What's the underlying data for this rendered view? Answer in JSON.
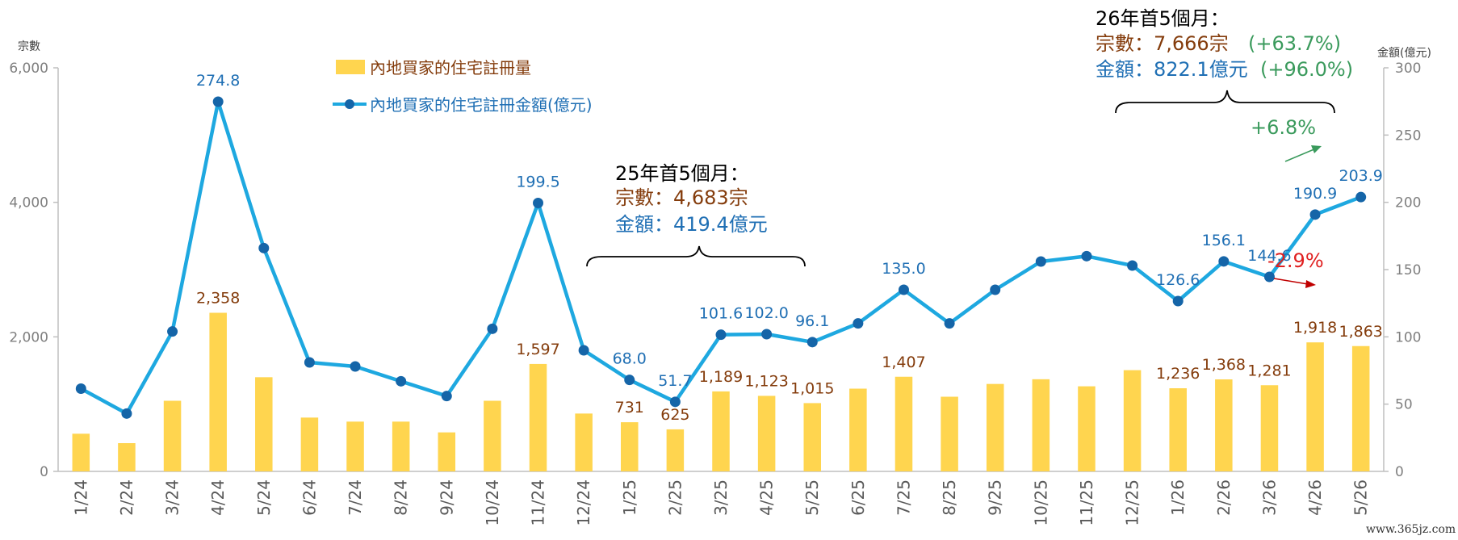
{
  "chart_data": {
    "type": "bar+line",
    "categories": [
      "1/24",
      "2/24",
      "3/24",
      "4/24",
      "5/24",
      "6/24",
      "7/24",
      "8/24",
      "9/24",
      "10/24",
      "11/24",
      "12/24",
      "1/25",
      "2/25",
      "3/25",
      "4/25",
      "5/25",
      "6/25",
      "7/25",
      "8/25",
      "9/25",
      "10/25",
      "11/25",
      "12/25",
      "1/26",
      "2/26",
      "3/26",
      "4/26",
      "5/26"
    ],
    "series": [
      {
        "name": "內地買家的住宅註冊量",
        "axis": "left",
        "type": "bar",
        "color": "#ffd54f",
        "values": [
          560,
          420,
          1050,
          2358,
          1400,
          800,
          740,
          740,
          580,
          1050,
          1597,
          860,
          731,
          625,
          1189,
          1123,
          1015,
          1230,
          1407,
          1110,
          1300,
          1370,
          1265,
          1505,
          1236,
          1368,
          1281,
          1918,
          1863
        ],
        "labels": [
          "",
          "",
          "",
          "2,358",
          "",
          "",
          "",
          "",
          "",
          "",
          "1,597",
          "",
          "731",
          "625",
          "1,189",
          "1,123",
          "1,015",
          "",
          "1,407",
          "",
          "",
          "",
          "",
          "",
          "1,236",
          "1,368",
          "1,281",
          "1,918",
          "1,863"
        ]
      },
      {
        "name": "內地買家的住宅註冊金額(億元)",
        "axis": "right",
        "type": "line",
        "color": "#1ea8e0",
        "marker_color": "#1565a8",
        "values": [
          61.5,
          43,
          104,
          274.8,
          166,
          81,
          78,
          67,
          56,
          106,
          199.5,
          90,
          68.0,
          51.7,
          101.6,
          102.0,
          96.1,
          110,
          135.0,
          110,
          135,
          156,
          160,
          153,
          126.6,
          156.1,
          144.6,
          190.9,
          203.9
        ],
        "labels": [
          "",
          "",
          "",
          "274.8",
          "",
          "",
          "",
          "",
          "",
          "",
          "199.5",
          "",
          "68.0",
          "51.7",
          "101.6",
          "102.0",
          "96.1",
          "",
          "135.0",
          "",
          "",
          "",
          "",
          "",
          "126.6",
          "156.1",
          "144.6",
          "190.9",
          "203.9"
        ]
      }
    ],
    "left_axis": {
      "title": "宗數",
      "ticks": [
        "0",
        "2,000",
        "4,000",
        "6,000"
      ],
      "range": [
        0,
        6000
      ]
    },
    "right_axis": {
      "title": "金額(億元)",
      "ticks": [
        "0",
        "50",
        "100",
        "150",
        "200",
        "250",
        "300"
      ],
      "range": [
        0,
        300
      ]
    },
    "legend_position": "top-left",
    "annotations": {
      "period25": {
        "title": "25年首5個月：",
        "count": "宗數：4,683宗",
        "amount": "金額：419.4億元"
      },
      "period26": {
        "title": "26年首5個月：",
        "count": "宗數：7,666宗",
        "count_change": "(+63.7%)",
        "amount": "金額：822.1億元",
        "amount_change": "(+96.0%)"
      },
      "change_up": "+6.8%",
      "change_down": "-2.9%"
    }
  },
  "watermark": "www.365jz.com"
}
